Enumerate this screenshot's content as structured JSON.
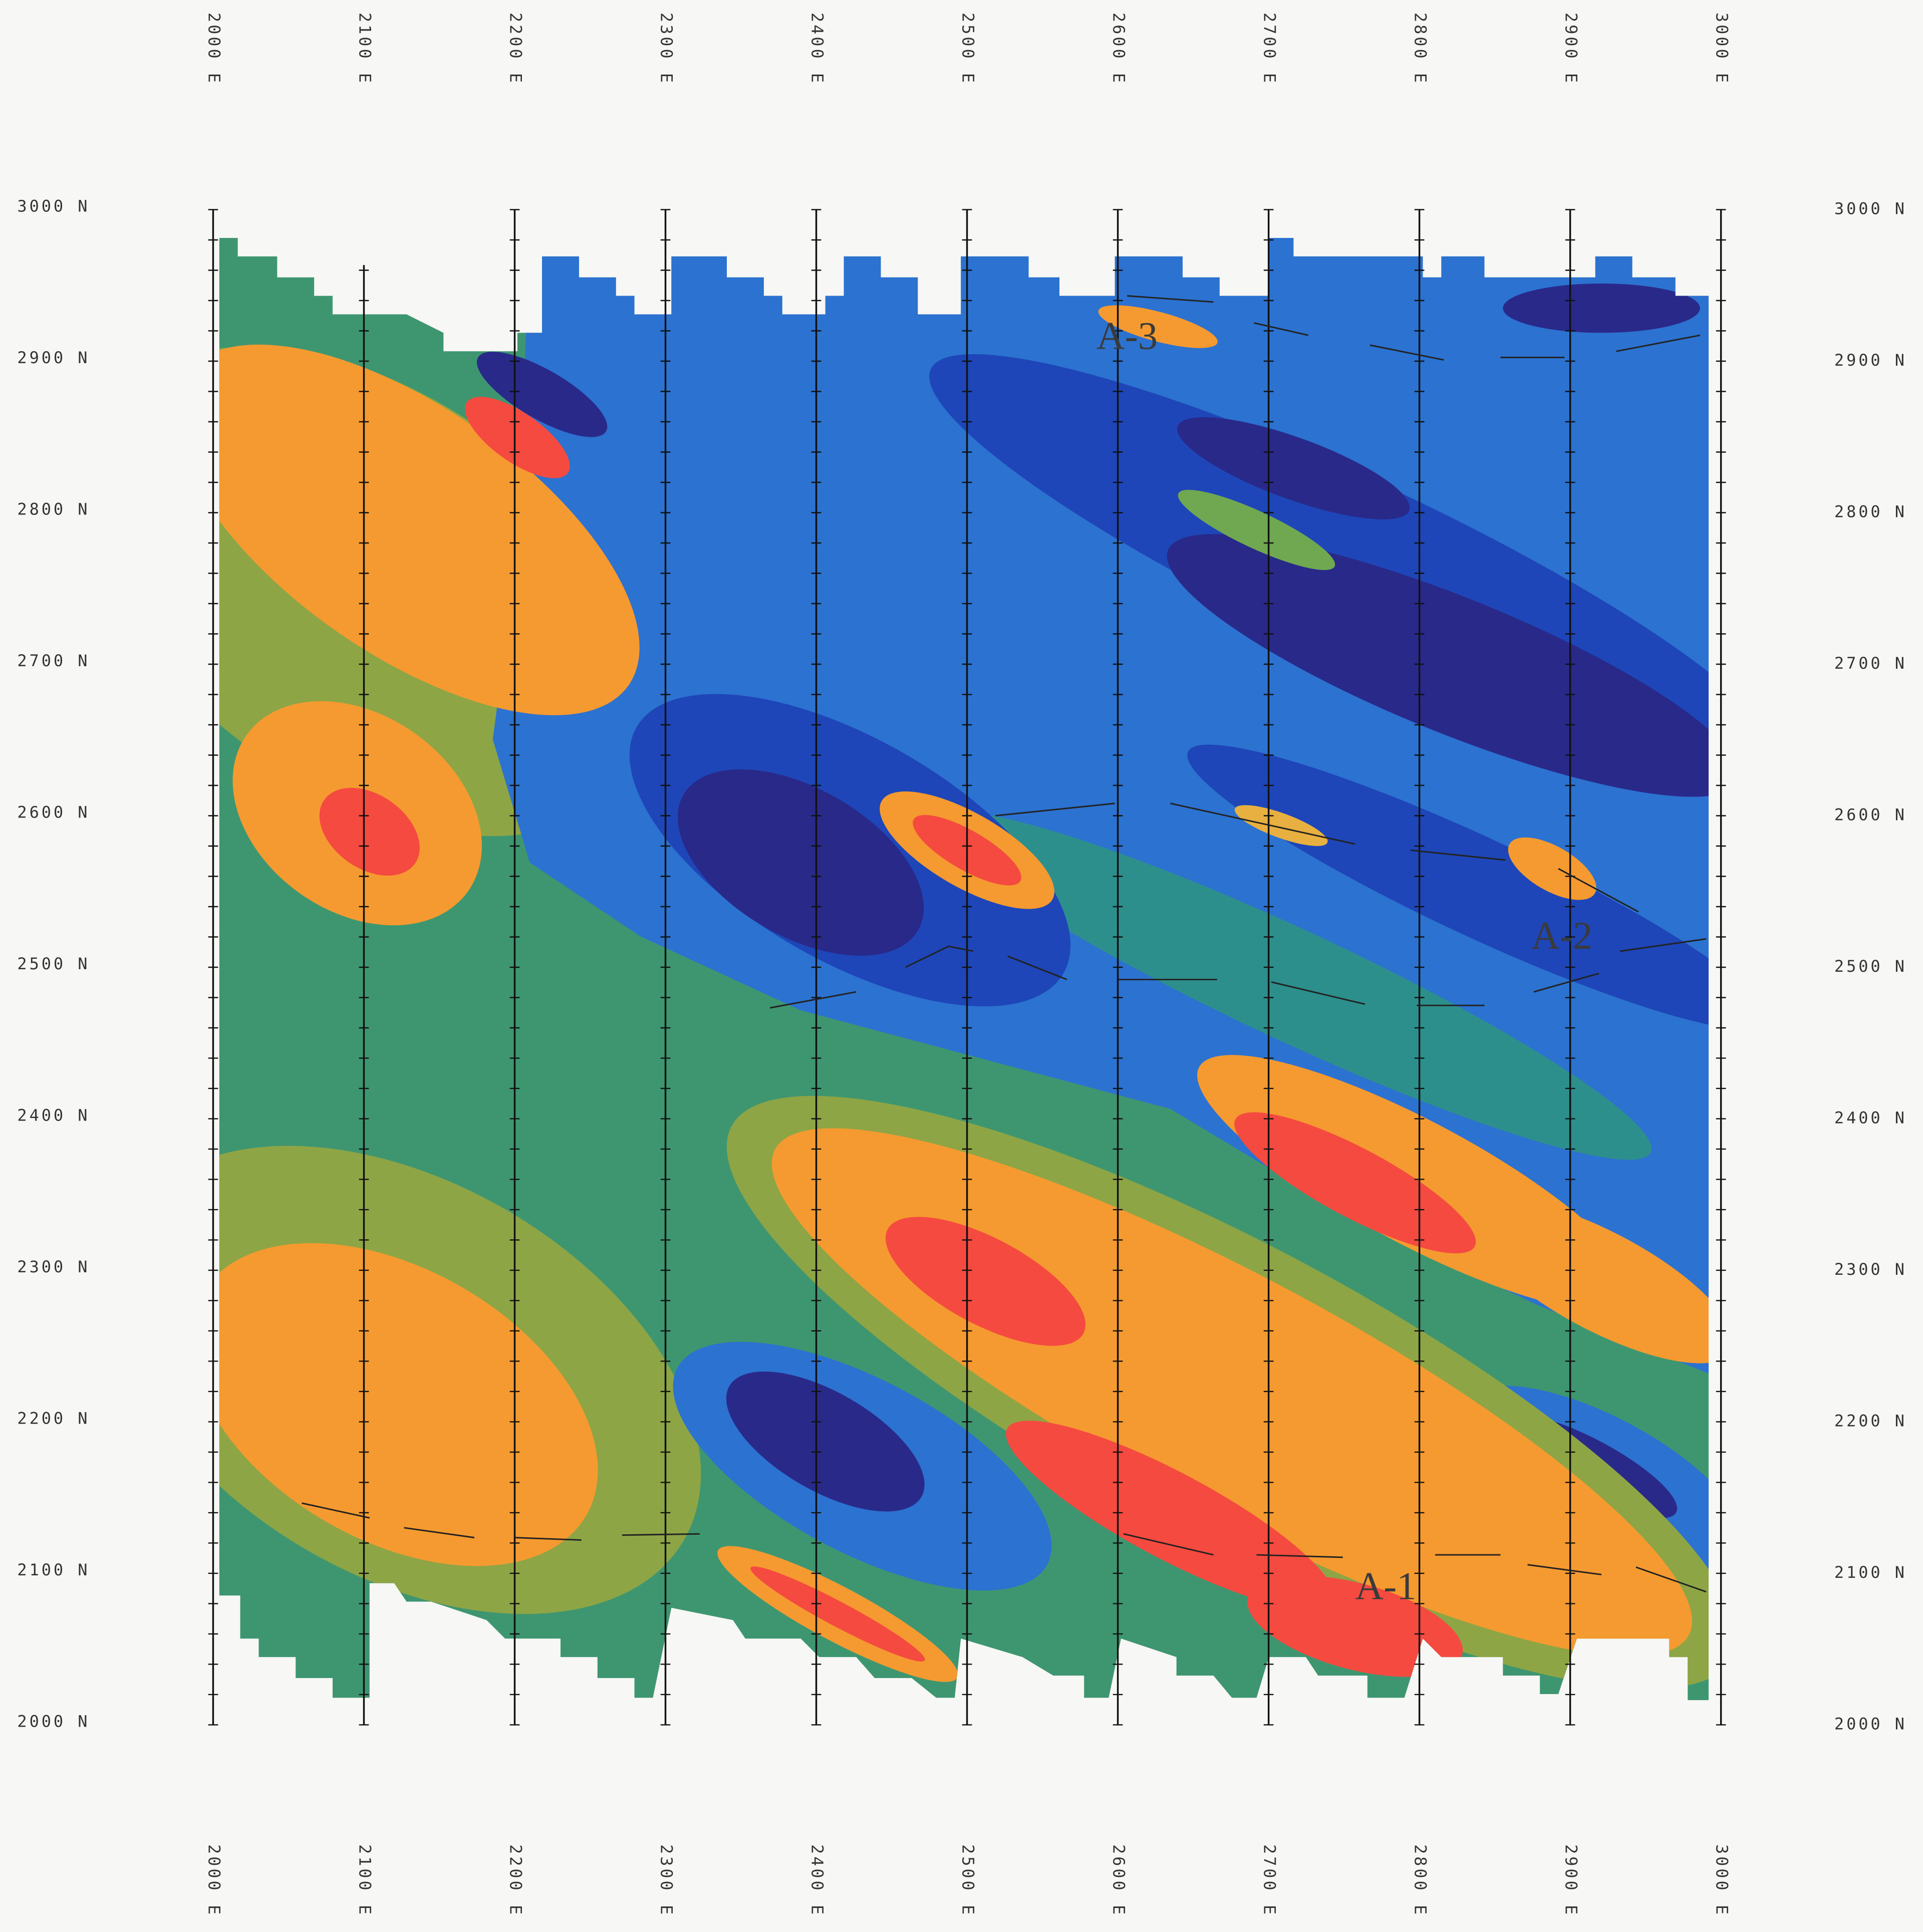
{
  "eastings": [
    "2000 E",
    "2100 E",
    "2200 E",
    "2300 E",
    "2400 E",
    "2500 E",
    "2600 E",
    "2700 E",
    "2800 E",
    "2900 E",
    "3000 E"
  ],
  "northings": [
    "3000 N",
    "2900 N",
    "2800 N",
    "2700 N",
    "2600 N",
    "2500 N",
    "2400 N",
    "2300 N",
    "2200 N",
    "2100 N",
    "2000 N"
  ],
  "anomalies": [
    "A-1",
    "A-2",
    "A-3"
  ]
}
